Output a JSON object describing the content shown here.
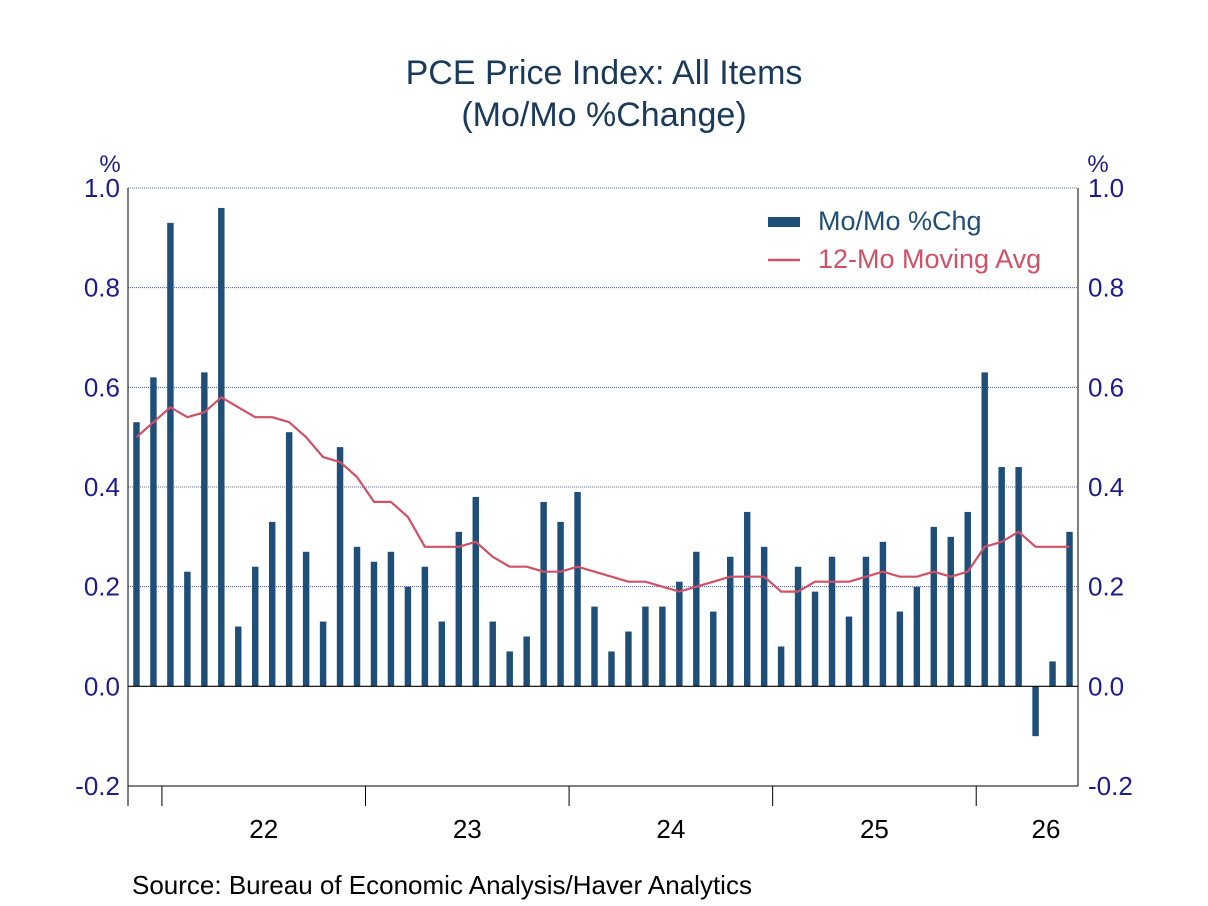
{
  "chart_data": {
    "type": "bar",
    "title": "PCE Price Index: All Items",
    "subtitle": "(Mo/Mo %Change)",
    "y_unit_left": "%",
    "y_unit_right": "%",
    "ylim": [
      -0.2,
      1.0
    ],
    "yticks": [
      "1.0",
      "0.8",
      "0.6",
      "0.4",
      "0.2",
      "0.0",
      "-0.2"
    ],
    "ytick_values": [
      1.0,
      0.8,
      0.6,
      0.4,
      0.2,
      0.0,
      -0.2
    ],
    "x_year_labels": [
      "22",
      "23",
      "24",
      "25",
      "26"
    ],
    "x_start": "2021-11",
    "grid": true,
    "legend_position": "top-right",
    "source": "Source:  Bureau of Economic Analysis/Haver Analytics",
    "series": [
      {
        "name": "Mo/Mo %Chg",
        "type": "bar",
        "color": "#1f4e79",
        "values": [
          0.53,
          0.62,
          0.93,
          0.23,
          0.63,
          0.96,
          0.12,
          0.24,
          0.33,
          0.51,
          0.27,
          0.13,
          0.48,
          0.28,
          0.25,
          0.27,
          0.2,
          0.24,
          0.13,
          0.31,
          0.38,
          0.13,
          0.07,
          0.1,
          0.37,
          0.33,
          0.39,
          0.16,
          0.07,
          0.11,
          0.16,
          0.16,
          0.21,
          0.27,
          0.15,
          0.26,
          0.35,
          0.28,
          0.08,
          0.24,
          0.19,
          0.26,
          0.14,
          0.26,
          0.29,
          0.15,
          0.2,
          0.32,
          0.3,
          0.35,
          0.63,
          0.44,
          0.44,
          -0.1,
          0.05,
          0.31
        ]
      },
      {
        "name": "12-Mo Moving Avg",
        "type": "line",
        "color": "#d05065",
        "values": [
          0.5,
          0.53,
          0.56,
          0.54,
          0.55,
          0.58,
          0.56,
          0.54,
          0.54,
          0.53,
          0.5,
          0.46,
          0.45,
          0.42,
          0.37,
          0.37,
          0.34,
          0.28,
          0.28,
          0.28,
          0.29,
          0.26,
          0.24,
          0.24,
          0.23,
          0.23,
          0.24,
          0.23,
          0.22,
          0.21,
          0.21,
          0.2,
          0.19,
          0.2,
          0.21,
          0.22,
          0.22,
          0.22,
          0.19,
          0.19,
          0.21,
          0.21,
          0.21,
          0.22,
          0.23,
          0.22,
          0.22,
          0.23,
          0.22,
          0.23,
          0.28,
          0.29,
          0.31,
          0.28,
          0.28,
          0.28
        ]
      }
    ]
  }
}
